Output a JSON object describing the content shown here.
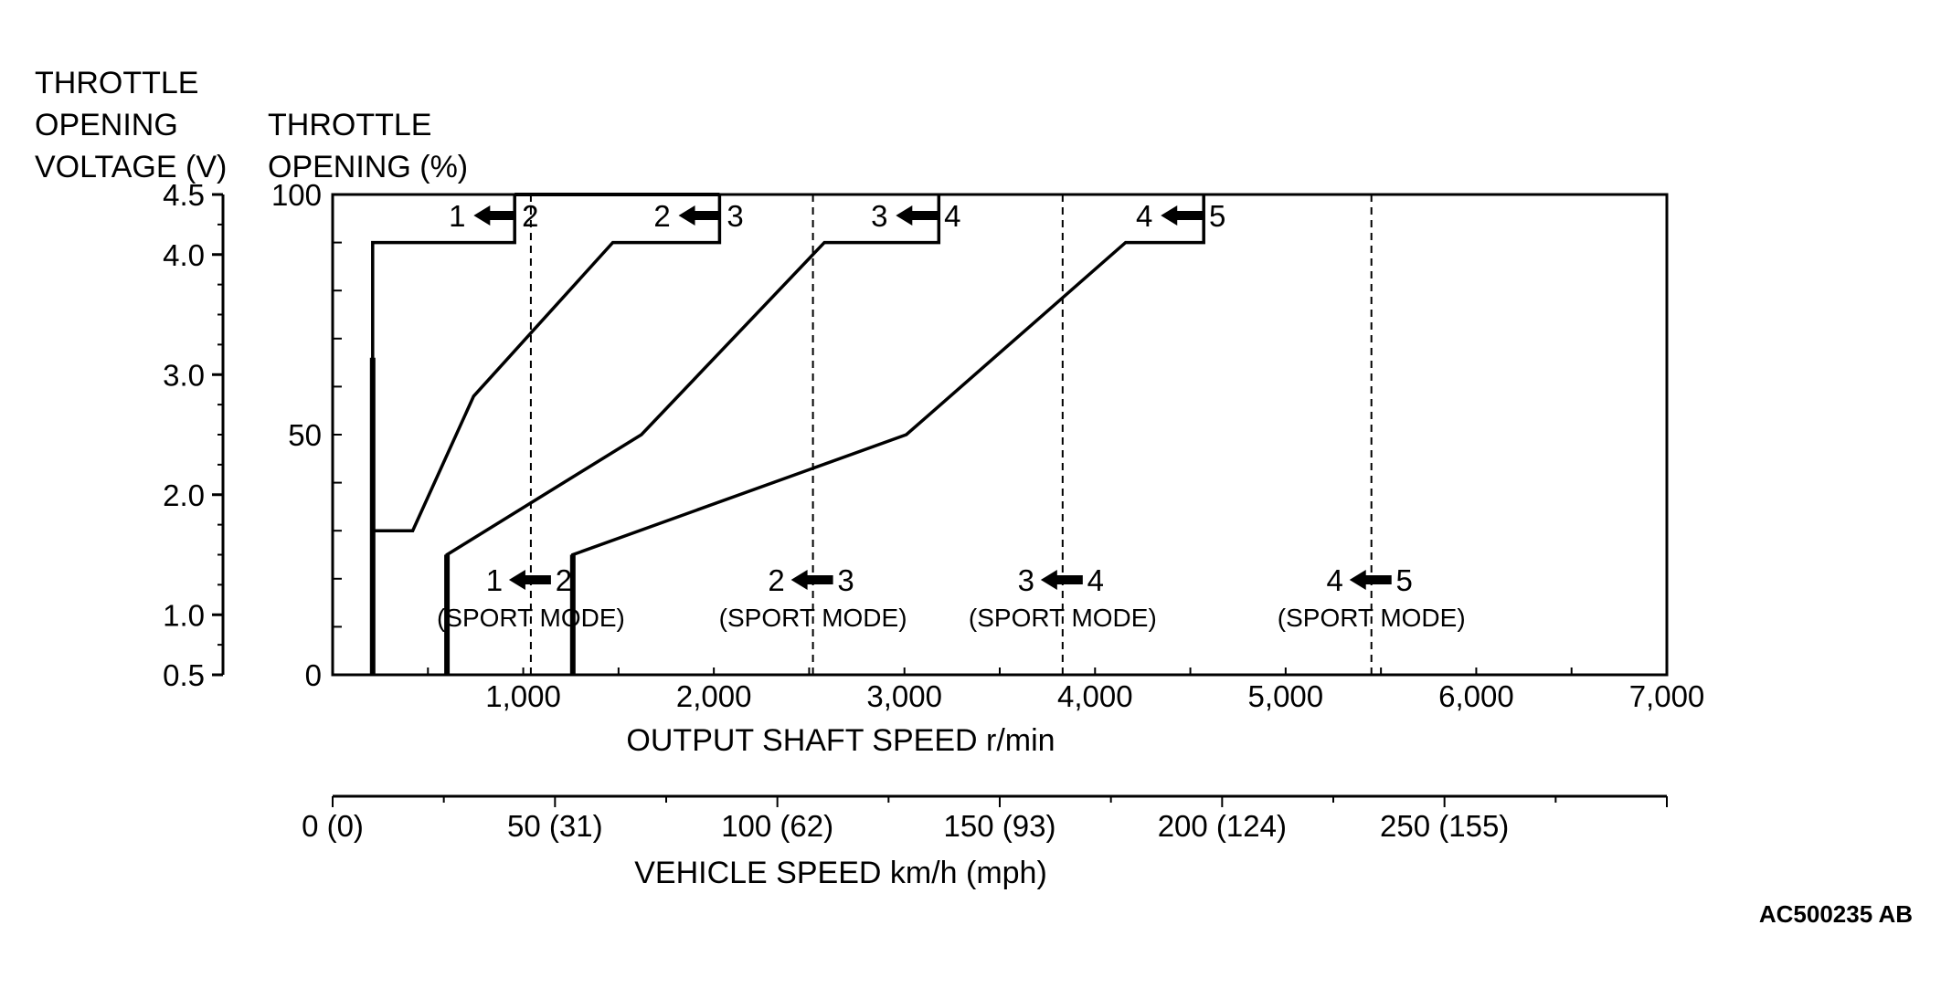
{
  "chart_data": {
    "type": "line",
    "title": "",
    "y_left_label_lines": [
      "THROTTLE",
      "OPENING",
      "VOLTAGE (V)"
    ],
    "y_right_label_lines": [
      "THROTTLE",
      "OPENING (%)"
    ],
    "xlabel": "OUTPUT SHAFT SPEED r/min",
    "x2label": "VEHICLE SPEED km/h (mph)",
    "figure_code": "AC500235 AB",
    "xlim": [
      0,
      7000
    ],
    "ylim": [
      0,
      100
    ],
    "voltage_range": [
      0.5,
      4.5
    ],
    "x_ticks": [
      {
        "value": 1000,
        "label": "1,000"
      },
      {
        "value": 2000,
        "label": "2,000"
      },
      {
        "value": 3000,
        "label": "3,000"
      },
      {
        "value": 4000,
        "label": "4,000"
      },
      {
        "value": 5000,
        "label": "5,000"
      },
      {
        "value": 6000,
        "label": "6,000"
      },
      {
        "value": 7000,
        "label": "7,000"
      }
    ],
    "y_pct_ticks": [
      {
        "value": 0,
        "label": "0"
      },
      {
        "value": 50,
        "label": "50"
      },
      {
        "value": 100,
        "label": "100"
      }
    ],
    "y_volt_ticks": [
      {
        "value": 0.5,
        "label": "0.5"
      },
      {
        "value": 1.0,
        "label": "1.0"
      },
      {
        "value": 2.0,
        "label": "2.0"
      },
      {
        "value": 3.0,
        "label": "3.0"
      },
      {
        "value": 4.0,
        "label": "4.0"
      },
      {
        "value": 4.5,
        "label": "4.5"
      }
    ],
    "vehicle_ticks": [
      {
        "kmh": 0,
        "label": "0 (0)"
      },
      {
        "kmh": 50,
        "label": "50 (31)"
      },
      {
        "kmh": 100,
        "label": "100 (62)"
      },
      {
        "kmh": 150,
        "label": "150 (93)"
      },
      {
        "kmh": 200,
        "label": "200 (124)"
      },
      {
        "kmh": 250,
        "label": "250 (155)"
      }
    ],
    "vehicle_kmh_max": 300,
    "downshift_lines": [
      {
        "name": "1-2",
        "points": [
          [
            210,
            0
          ],
          [
            210,
            90
          ],
          [
            955,
            90
          ],
          [
            955,
            100
          ]
        ],
        "bold_start": [
          [
            210,
            0
          ],
          [
            210,
            66
          ]
        ],
        "label_from": "1",
        "label_to": "2",
        "label_x": 855
      },
      {
        "name": "2-3",
        "points": [
          [
            210,
            0
          ],
          [
            210,
            30
          ],
          [
            420,
            30
          ],
          [
            740,
            58
          ],
          [
            1470,
            90
          ],
          [
            2030,
            90
          ],
          [
            2030,
            100
          ]
        ],
        "bold_start": [],
        "label_from": "2",
        "label_to": "3",
        "label_x": 1930
      },
      {
        "name": "3-4",
        "points": [
          [
            600,
            0
          ],
          [
            600,
            25
          ],
          [
            1620,
            50
          ],
          [
            2580,
            90
          ],
          [
            3180,
            90
          ],
          [
            3180,
            100
          ]
        ],
        "bold_start": [
          [
            600,
            0
          ],
          [
            600,
            25
          ]
        ],
        "label_from": "3",
        "label_to": "4",
        "label_x": 3070
      },
      {
        "name": "4-5",
        "points": [
          [
            1260,
            0
          ],
          [
            1260,
            25
          ],
          [
            3010,
            50
          ],
          [
            4160,
            90
          ],
          [
            4570,
            90
          ],
          [
            4570,
            100
          ]
        ],
        "bold_start": [
          [
            1260,
            0
          ],
          [
            1260,
            25
          ]
        ],
        "label_from": "4",
        "label_to": "5",
        "label_x": 4460
      }
    ],
    "sport_mode_lines": [
      {
        "name": "1-2",
        "x": 1040,
        "from": "1",
        "to": "2",
        "mode_text": "(SPORT MODE)"
      },
      {
        "name": "2-3",
        "x": 2520,
        "from": "2",
        "to": "3",
        "mode_text": "(SPORT MODE)"
      },
      {
        "name": "3-4",
        "x": 3830,
        "from": "3",
        "to": "4",
        "mode_text": "(SPORT MODE)"
      },
      {
        "name": "4-5",
        "x": 5450,
        "from": "4",
        "to": "5",
        "mode_text": "(SPORT MODE)"
      }
    ],
    "top_line_segment": {
      "from": 955,
      "to": 2030,
      "y": 100
    }
  }
}
